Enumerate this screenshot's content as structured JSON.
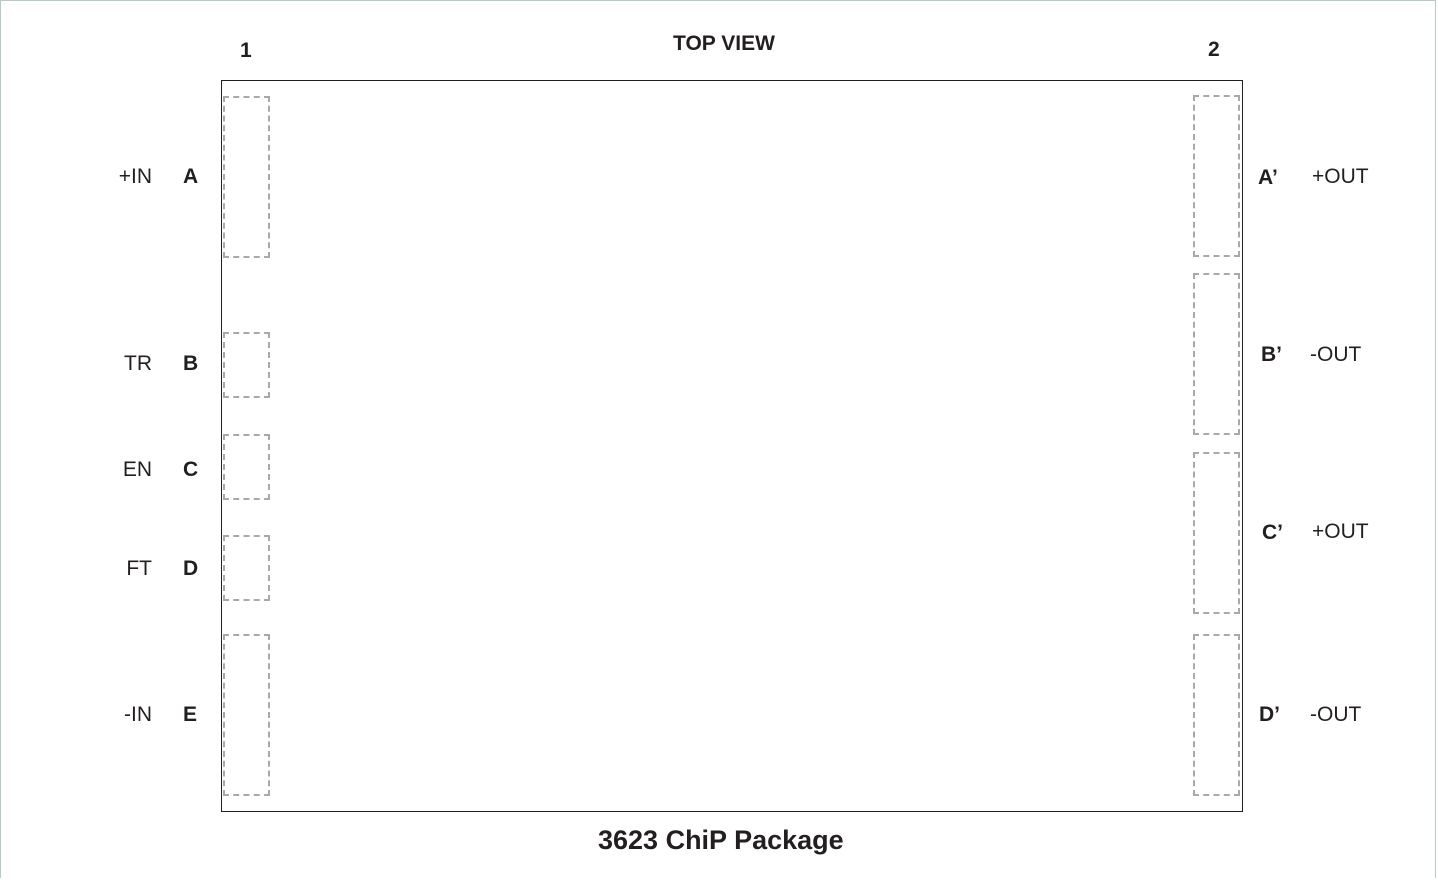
{
  "diagram": {
    "view_label": "TOP VIEW",
    "column_left": "1",
    "column_right": "2",
    "caption": "3623 ChiP Package",
    "colors": {
      "outline": "#231f20",
      "pad_dashed": "#a7a9ac",
      "frame": "#b7c9c4"
    },
    "left_pins": [
      {
        "signal": "+IN",
        "pin": "A"
      },
      {
        "signal": "TR",
        "pin": "B"
      },
      {
        "signal": "EN",
        "pin": "C"
      },
      {
        "signal": "FT",
        "pin": "D"
      },
      {
        "signal": "-IN",
        "pin": "E"
      }
    ],
    "right_pins": [
      {
        "pin": "A’",
        "signal": "+OUT"
      },
      {
        "pin": "B’",
        "signal": "-OUT"
      },
      {
        "pin": "C’",
        "signal": "+OUT"
      },
      {
        "pin": "D’",
        "signal": "-OUT"
      }
    ]
  }
}
